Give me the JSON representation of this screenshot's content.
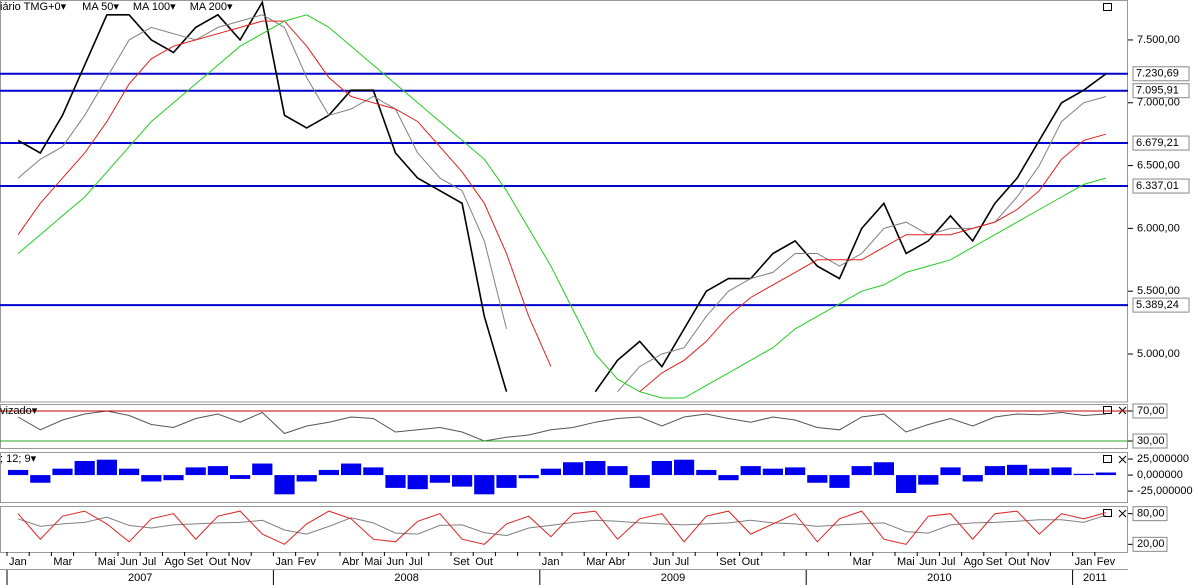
{
  "chart_data": [
    {
      "type": "line",
      "title": "iário TMG+0▾",
      "x": [
        "2007-01",
        "2007-02",
        "2007-03",
        "2007-04",
        "2007-05",
        "2007-06",
        "2007-07",
        "2007-08",
        "2007-09",
        "2007-10",
        "2007-11",
        "2007-12",
        "2008-01",
        "2008-02",
        "2008-03",
        "2008-04",
        "2008-05",
        "2008-06",
        "2008-07",
        "2008-08",
        "2008-09",
        "2008-10",
        "2008-11",
        "2008-12",
        "2009-01",
        "2009-02",
        "2009-03",
        "2009-04",
        "2009-05",
        "2009-06",
        "2009-07",
        "2009-08",
        "2009-09",
        "2009-10",
        "2009-11",
        "2009-12",
        "2010-01",
        "2010-02",
        "2010-03",
        "2010-04",
        "2010-05",
        "2010-06",
        "2010-07",
        "2010-08",
        "2010-09",
        "2010-10",
        "2010-11",
        "2010-12",
        "2011-01",
        "2011-02"
      ],
      "series": [
        {
          "color": "#000000",
          "values": [
            6700,
            6600,
            6900,
            7300,
            7700,
            7700,
            7500,
            7400,
            7600,
            7700,
            7500,
            7800,
            6900,
            6800,
            6900,
            7100,
            7100,
            6600,
            6400,
            6300,
            6200,
            5300,
            4700,
            null,
            null,
            null,
            4700,
            4950,
            5100,
            4900,
            5200,
            5500,
            5600,
            5600,
            5800,
            5900,
            5700,
            5600,
            6000,
            6200,
            5800,
            5900,
            6100,
            5900,
            6200,
            6400,
            6700,
            7000,
            7100,
            7230
          ]
        },
        {
          "name": "MA 50▾",
          "color": "#808080",
          "values": [
            6400,
            6550,
            6650,
            6900,
            7200,
            7500,
            7600,
            7550,
            7500,
            7600,
            7650,
            7700,
            7600,
            7200,
            6900,
            6950,
            7050,
            6950,
            6600,
            6400,
            6300,
            5900,
            5200,
            null,
            null,
            null,
            null,
            4700,
            4900,
            5000,
            5050,
            5300,
            5500,
            5600,
            5650,
            5800,
            5800,
            5700,
            5800,
            6000,
            6050,
            5950,
            6000,
            6000,
            6050,
            6250,
            6500,
            6850,
            7000,
            7050
          ]
        },
        {
          "name": "MA 100▾",
          "color": "#e02020",
          "values": [
            5950,
            6200,
            6400,
            6600,
            6850,
            7150,
            7350,
            7450,
            7500,
            7550,
            7600,
            7650,
            7650,
            7450,
            7200,
            7050,
            7000,
            6950,
            6850,
            6650,
            6450,
            6200,
            5800,
            5300,
            4900,
            null,
            null,
            null,
            4700,
            4850,
            4950,
            5100,
            5300,
            5450,
            5550,
            5650,
            5750,
            5750,
            5750,
            5850,
            5950,
            5950,
            5950,
            6000,
            6050,
            6150,
            6300,
            6550,
            6700,
            6750
          ]
        },
        {
          "name": "MA 200▾",
          "color": "#22cc22",
          "values": [
            5800,
            5950,
            6100,
            6250,
            6450,
            6650,
            6850,
            7000,
            7150,
            7300,
            7450,
            7550,
            7650,
            7700,
            7600,
            7450,
            7300,
            7150,
            7000,
            6850,
            6700,
            6550,
            6300,
            6000,
            5700,
            5350,
            5000,
            4800,
            4700,
            4650,
            4650,
            4750,
            4850,
            4950,
            5050,
            5200,
            5300,
            5400,
            5500,
            5550,
            5650,
            5700,
            5750,
            5850,
            5950,
            6050,
            6150,
            6250,
            6350,
            6400
          ]
        }
      ],
      "ylim": [
        4618,
        7818
      ],
      "yticks": [
        {
          "value": 5000,
          "label": "5.000,00"
        },
        {
          "value": 5500,
          "label": "5.500,00"
        },
        {
          "value": 6000,
          "label": "6.000,00"
        },
        {
          "value": 6500,
          "label": "6.500,00"
        },
        {
          "value": 7000,
          "label": "7.000,00"
        },
        {
          "value": 7500,
          "label": "7.500,00"
        }
      ],
      "levels": [
        {
          "value": 7230.69,
          "label": "7.230,69",
          "color": "#0000cc"
        },
        {
          "value": 7095.91,
          "label": "7.095,91",
          "color": "#0000cc"
        },
        {
          "value": 6679.21,
          "label": "6.679,21",
          "color": "#0000cc"
        },
        {
          "value": 6337.01,
          "label": "6.337,01",
          "color": "#0000cc"
        },
        {
          "value": 5389.24,
          "label": "5.389,24",
          "color": "#0000cc"
        }
      ],
      "level_label_color": "#cc0000"
    },
    {
      "type": "line",
      "title": "vizado▾",
      "x": [
        "2007-01",
        "2007-02",
        "2007-03",
        "2007-04",
        "2007-05",
        "2007-06",
        "2007-07",
        "2007-08",
        "2007-09",
        "2007-10",
        "2007-11",
        "2007-12",
        "2008-01",
        "2008-02",
        "2008-03",
        "2008-04",
        "2008-05",
        "2008-06",
        "2008-07",
        "2008-08",
        "2008-09",
        "2008-10",
        "2008-11",
        "2008-12",
        "2009-01",
        "2009-02",
        "2009-03",
        "2009-04",
        "2009-05",
        "2009-06",
        "2009-07",
        "2009-08",
        "2009-09",
        "2009-10",
        "2009-11",
        "2009-12",
        "2010-01",
        "2010-02",
        "2010-03",
        "2010-04",
        "2010-05",
        "2010-06",
        "2010-07",
        "2010-08",
        "2010-09",
        "2010-10",
        "2010-11",
        "2010-12",
        "2011-01",
        "2011-02"
      ],
      "series": [
        {
          "color": "#555555",
          "values": [
            62,
            45,
            58,
            66,
            70,
            64,
            52,
            48,
            60,
            66,
            55,
            68,
            40,
            50,
            55,
            62,
            60,
            42,
            45,
            48,
            42,
            30,
            35,
            38,
            45,
            48,
            55,
            60,
            62,
            50,
            62,
            66,
            60,
            55,
            62,
            58,
            48,
            45,
            62,
            66,
            42,
            52,
            60,
            50,
            62,
            66,
            65,
            68,
            64,
            66
          ]
        }
      ],
      "ylim": [
        20.7,
        79.3
      ],
      "yticks": [
        {
          "value": 30,
          "label": "30,00"
        },
        {
          "value": 70,
          "label": "70,00"
        }
      ],
      "tick_line_colors": [
        "#22aa22",
        "#cc0000"
      ],
      "tick_label_color": "#cc0000"
    },
    {
      "type": "bar",
      "title": "; 12; 9▾",
      "x": [
        "2007-01",
        "2007-02",
        "2007-03",
        "2007-04",
        "2007-05",
        "2007-06",
        "2007-07",
        "2007-08",
        "2007-09",
        "2007-10",
        "2007-11",
        "2007-12",
        "2008-01",
        "2008-02",
        "2008-03",
        "2008-04",
        "2008-05",
        "2008-06",
        "2008-07",
        "2008-08",
        "2008-09",
        "2008-10",
        "2008-11",
        "2008-12",
        "2009-01",
        "2009-02",
        "2009-03",
        "2009-04",
        "2009-05",
        "2009-06",
        "2009-07",
        "2009-08",
        "2009-09",
        "2009-10",
        "2009-11",
        "2009-12",
        "2010-01",
        "2010-02",
        "2010-03",
        "2010-04",
        "2010-05",
        "2010-06",
        "2010-07",
        "2010-08",
        "2010-09",
        "2010-10",
        "2010-11",
        "2010-12",
        "2011-01",
        "2011-02"
      ],
      "series": [
        {
          "color": "#0000ee",
          "values": [
            8,
            -12,
            10,
            22,
            24,
            10,
            -10,
            -8,
            12,
            14,
            -6,
            18,
            -30,
            -10,
            8,
            18,
            12,
            -20,
            -22,
            -12,
            -18,
            -30,
            -20,
            -5,
            10,
            20,
            22,
            14,
            -20,
            22,
            24,
            8,
            -8,
            14,
            10,
            12,
            -12,
            -20,
            14,
            20,
            -28,
            -15,
            12,
            -10,
            14,
            16,
            10,
            12,
            2,
            4
          ]
        }
      ],
      "ylim": [
        -42,
        36
      ],
      "yticks": [
        {
          "value": 25,
          "label": "25,000000"
        },
        {
          "value": 0,
          "label": "0,000000"
        },
        {
          "value": -25,
          "label": "-25,000000"
        }
      ]
    },
    {
      "type": "line",
      "x": [
        "2007-01",
        "2007-02",
        "2007-03",
        "2007-04",
        "2007-05",
        "2007-06",
        "2007-07",
        "2007-08",
        "2007-09",
        "2007-10",
        "2007-11",
        "2007-12",
        "2008-01",
        "2008-02",
        "2008-03",
        "2008-04",
        "2008-05",
        "2008-06",
        "2008-07",
        "2008-08",
        "2008-09",
        "2008-10",
        "2008-11",
        "2008-12",
        "2009-01",
        "2009-02",
        "2009-03",
        "2009-04",
        "2009-05",
        "2009-06",
        "2009-07",
        "2009-08",
        "2009-09",
        "2009-10",
        "2009-11",
        "2009-12",
        "2010-01",
        "2010-02",
        "2010-03",
        "2010-04",
        "2010-05",
        "2010-06",
        "2010-07",
        "2010-08",
        "2010-09",
        "2010-10",
        "2010-11",
        "2010-12",
        "2011-01",
        "2011-02"
      ],
      "x_labels": [
        "Jan",
        null,
        "Mar",
        null,
        "Mai",
        "Jun",
        "Jul",
        "Ago",
        "Set",
        "Out",
        "Nov",
        null,
        "Jan",
        "Fev",
        null,
        "Abr",
        "Mai",
        "Jun",
        "Jul",
        null,
        "Set",
        "Out",
        null,
        null,
        "Jan",
        null,
        "Mar",
        "Abr",
        null,
        "Jun",
        "Jul",
        null,
        "Set",
        "Out",
        null,
        null,
        null,
        null,
        "Mar",
        null,
        "Mai",
        "Jun",
        "Jul",
        "Ago",
        "Set",
        "Out",
        "Nov",
        null,
        "Jan",
        "Fev"
      ],
      "years": [
        "2007",
        "2008",
        "2009",
        "2010",
        "2011"
      ],
      "series": [
        {
          "color": "#808080",
          "values": [
            70,
            55,
            60,
            63,
            73,
            57,
            52,
            58,
            60,
            62,
            63,
            67,
            48,
            40,
            55,
            72,
            62,
            42,
            40,
            57,
            58,
            43,
            37,
            52,
            57,
            63,
            67,
            65,
            62,
            60,
            58,
            60,
            62,
            67,
            62,
            60,
            55,
            58,
            60,
            62,
            45,
            42,
            58,
            62,
            63,
            65,
            68,
            68,
            63,
            77
          ]
        },
        {
          "color": "#dd2222",
          "values": [
            80,
            30,
            75,
            85,
            60,
            25,
            70,
            80,
            30,
            75,
            85,
            40,
            20,
            60,
            85,
            70,
            30,
            25,
            65,
            80,
            30,
            20,
            60,
            75,
            35,
            80,
            85,
            30,
            70,
            80,
            25,
            75,
            85,
            40,
            60,
            80,
            25,
            70,
            85,
            30,
            20,
            75,
            80,
            30,
            80,
            85,
            40,
            80,
            70,
            82
          ]
        }
      ],
      "ylim": [
        5,
        95
      ],
      "yticks": [
        {
          "value": 20,
          "label": "20,00"
        },
        {
          "value": 80,
          "label": "80,00"
        }
      ],
      "tick_label_color": "#cc0000"
    }
  ]
}
